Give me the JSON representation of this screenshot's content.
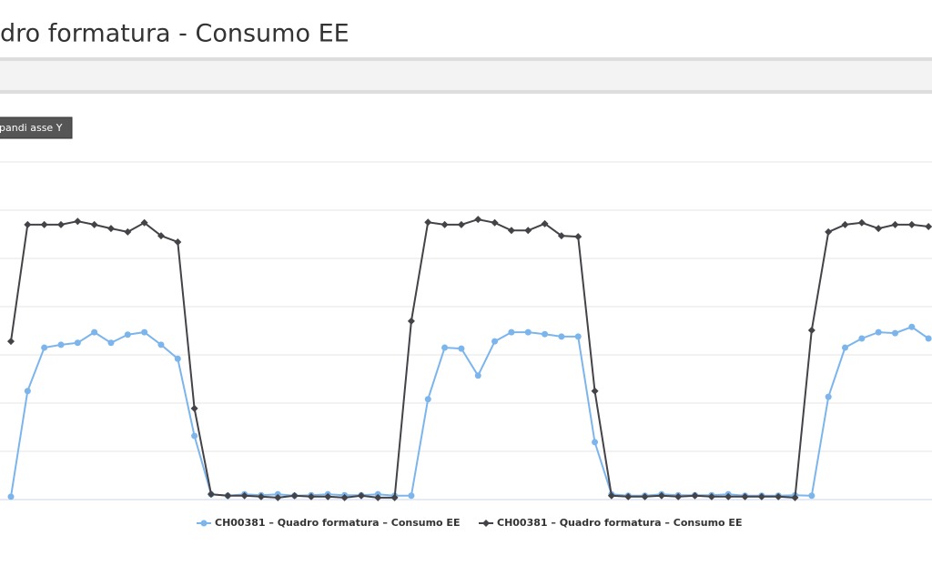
{
  "header": {
    "title": "dro formatura - Consumo EE"
  },
  "toolbar": {
    "button": "pandi asse Y"
  },
  "chart_data": {
    "type": "line",
    "categories": [
      null,
      null,
      null,
      null,
      null,
      null,
      null,
      null,
      null,
      null,
      null,
      null,
      null,
      null,
      null,
      null,
      null,
      null,
      null,
      null,
      null,
      null,
      null,
      null,
      null,
      null,
      null,
      null,
      null,
      null,
      null,
      null,
      null,
      null,
      null,
      null,
      null,
      null,
      null,
      null,
      null,
      null,
      null,
      null,
      null,
      null,
      null,
      null,
      null,
      null,
      null,
      null,
      null,
      null,
      null,
      null
    ],
    "ylim": [
      0,
      7
    ],
    "yticks": [
      0,
      1,
      2,
      3,
      4,
      5,
      6,
      7
    ],
    "grid": true,
    "series": [
      {
        "name": "CH00381 – Quadro formatura – Consumo EE",
        "color": "#7cb5ec",
        "marker": "circle",
        "values": [
          0.06,
          2.25,
          3.15,
          3.21,
          3.25,
          3.47,
          3.25,
          3.42,
          3.47,
          3.21,
          2.92,
          1.32,
          0.11,
          0.08,
          0.11,
          0.09,
          0.11,
          0.08,
          0.09,
          0.11,
          0.09,
          0.09,
          0.11,
          0.08,
          0.08,
          2.08,
          3.15,
          3.13,
          2.57,
          3.28,
          3.47,
          3.47,
          3.43,
          3.38,
          3.38,
          1.19,
          0.11,
          0.08,
          0.08,
          0.11,
          0.09,
          0.09,
          0.09,
          0.11,
          0.08,
          0.08,
          0.08,
          0.09,
          0.08,
          2.13,
          3.15,
          3.34,
          3.47,
          3.45,
          3.58,
          3.34
        ]
      },
      {
        "name": "CH00381 – Quadro formatura – Consumo EE",
        "color": "#434348",
        "marker": "diamond",
        "values": [
          3.28,
          5.7,
          5.7,
          5.7,
          5.77,
          5.7,
          5.62,
          5.55,
          5.74,
          5.47,
          5.34,
          1.89,
          0.11,
          0.08,
          0.08,
          0.06,
          0.04,
          0.08,
          0.06,
          0.06,
          0.04,
          0.08,
          0.04,
          0.04,
          3.7,
          5.75,
          5.7,
          5.7,
          5.81,
          5.74,
          5.58,
          5.58,
          5.72,
          5.47,
          5.45,
          2.25,
          0.08,
          0.06,
          0.06,
          0.08,
          0.06,
          0.08,
          0.06,
          0.06,
          0.06,
          0.06,
          0.06,
          0.04,
          3.51,
          5.55,
          5.7,
          5.74,
          5.62,
          5.7,
          5.7,
          5.66
        ]
      }
    ]
  }
}
